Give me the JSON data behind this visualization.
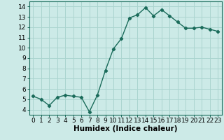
{
  "x": [
    0,
    1,
    2,
    3,
    4,
    5,
    6,
    7,
    8,
    9,
    10,
    11,
    12,
    13,
    14,
    15,
    16,
    17,
    18,
    19,
    20,
    21,
    22,
    23
  ],
  "y": [
    5.3,
    5.0,
    4.4,
    5.2,
    5.4,
    5.3,
    5.2,
    3.8,
    5.4,
    7.8,
    9.9,
    10.9,
    12.9,
    13.2,
    13.9,
    13.1,
    13.7,
    13.1,
    12.5,
    11.9,
    11.9,
    12.0,
    11.8,
    11.6
  ],
  "line_color": "#1a6b5a",
  "bg_color": "#cceae7",
  "grid_color": "#aad4cf",
  "xlabel": "Humidex (Indice chaleur)",
  "xlim": [
    -0.5,
    23.5
  ],
  "ylim": [
    3.5,
    14.5
  ],
  "yticks": [
    4,
    5,
    6,
    7,
    8,
    9,
    10,
    11,
    12,
    13,
    14
  ],
  "xticks": [
    0,
    1,
    2,
    3,
    4,
    5,
    6,
    7,
    8,
    9,
    10,
    11,
    12,
    13,
    14,
    15,
    16,
    17,
    18,
    19,
    20,
    21,
    22,
    23
  ],
  "xtick_labels": [
    "0",
    "1",
    "2",
    "3",
    "4",
    "5",
    "6",
    "7",
    "8",
    "9",
    "10",
    "11",
    "12",
    "13",
    "14",
    "15",
    "16",
    "17",
    "18",
    "19",
    "20",
    "21",
    "22",
    "23"
  ],
  "marker": "D",
  "marker_size": 2.2,
  "line_width": 1.0,
  "xlabel_fontsize": 7.5,
  "tick_fontsize": 6.5
}
